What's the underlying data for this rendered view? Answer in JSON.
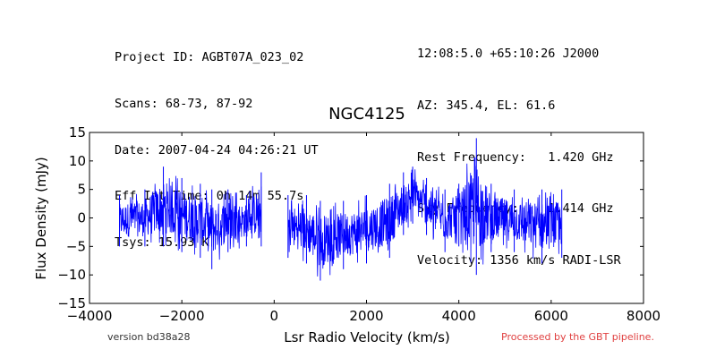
{
  "header": {
    "left_lines": [
      "Project ID: AGBT07A_023_02",
      "Scans: 68-73, 87-92",
      "Date: 2007-04-24 04:26:21 UT",
      "Eff Int Time: 0h 14m 55.7s",
      "Tsys: 15.93 K"
    ],
    "right_lines": [
      "12:08:5.0 +65:10:26 J2000",
      "AZ: 345.4, EL: 61.6",
      "Rest Frequency:   1.420 GHz",
      "Sky Frequency:    1.414 GHz",
      "Velocity: 1356 km/s RADI-LSR"
    ]
  },
  "footer": {
    "version": "version bd38a28",
    "pipeline": "Processed by the GBT pipeline."
  },
  "chart_data": {
    "type": "line",
    "title": "NGC4125",
    "xlabel": "Lsr Radio Velocity (km/s)",
    "ylabel": "Flux Density (mJy)",
    "xlim": [
      -4000,
      8000
    ],
    "ylim": [
      -15,
      15
    ],
    "xticks": [
      -4000,
      -2000,
      0,
      2000,
      4000,
      6000,
      8000
    ],
    "yticks": [
      -15,
      -10,
      -5,
      0,
      5,
      10,
      15
    ],
    "xtick_labels": [
      "−4000",
      "−2000",
      "0",
      "2000",
      "4000",
      "6000",
      "8000"
    ],
    "ytick_labels": [
      "−15",
      "−10",
      "−5",
      "0",
      "5",
      "10",
      "15"
    ],
    "grid": false,
    "line_color": "#0000ff",
    "series": [
      {
        "segments": [
          {
            "x_range": [
              -3350,
              -280
            ],
            "envelope": [
              {
                "x": -3350,
                "min": -5,
                "max": 4
              },
              {
                "x": -2800,
                "min": -5,
                "max": 5
              },
              {
                "x": -2400,
                "min": -5,
                "max": 9
              },
              {
                "x": -2000,
                "min": -6,
                "max": 7
              },
              {
                "x": -1600,
                "min": -7,
                "max": 6
              },
              {
                "x": -1350,
                "min": -9,
                "max": 5
              },
              {
                "x": -1000,
                "min": -6,
                "max": 5
              },
              {
                "x": -600,
                "min": -5,
                "max": 4
              },
              {
                "x": -280,
                "min": -5,
                "max": 8
              }
            ]
          },
          {
            "x_range": [
              300,
              6230
            ],
            "envelope": [
              {
                "x": 300,
                "min": -7,
                "max": 4
              },
              {
                "x": 700,
                "min": -8,
                "max": 4
              },
              {
                "x": 1000,
                "min": -11,
                "max": 3
              },
              {
                "x": 1500,
                "min": -9,
                "max": 3
              },
              {
                "x": 2000,
                "min": -8,
                "max": 4
              },
              {
                "x": 2500,
                "min": -7,
                "max": 6
              },
              {
                "x": 2800,
                "min": -3,
                "max": 8
              },
              {
                "x": 3000,
                "min": -1,
                "max": 9
              },
              {
                "x": 3300,
                "min": -3,
                "max": 7
              },
              {
                "x": 3700,
                "min": -6,
                "max": 5
              },
              {
                "x": 4000,
                "min": -5,
                "max": 6
              },
              {
                "x": 4380,
                "min": -10,
                "max": 14
              },
              {
                "x": 4700,
                "min": -6,
                "max": 6
              },
              {
                "x": 5200,
                "min": -6,
                "max": 5
              },
              {
                "x": 5800,
                "min": -8,
                "max": 5
              },
              {
                "x": 6230,
                "min": -7,
                "max": 5
              }
            ]
          }
        ]
      }
    ]
  }
}
